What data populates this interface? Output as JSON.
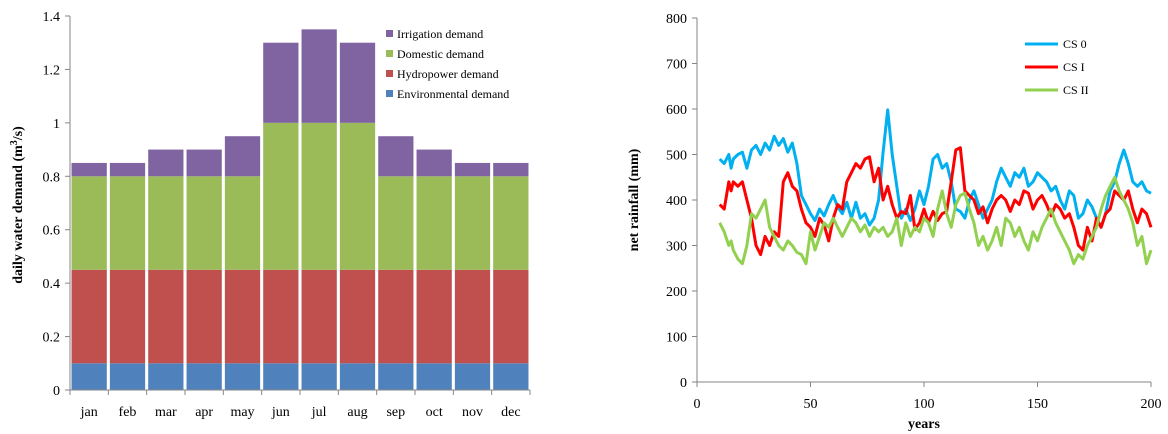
{
  "chart_data": [
    {
      "type": "bar",
      "stacked": true,
      "categories": [
        "jan",
        "feb",
        "mar",
        "apr",
        "may",
        "jun",
        "jul",
        "aug",
        "sep",
        "oct",
        "nov",
        "dec"
      ],
      "series": [
        {
          "name": "Environmental demand",
          "color": "#4f81bd",
          "values": [
            0.1,
            0.1,
            0.1,
            0.1,
            0.1,
            0.1,
            0.1,
            0.1,
            0.1,
            0.1,
            0.1,
            0.1
          ]
        },
        {
          "name": "Hydropower demand",
          "color": "#c0504d",
          "values": [
            0.35,
            0.35,
            0.35,
            0.35,
            0.35,
            0.35,
            0.35,
            0.35,
            0.35,
            0.35,
            0.35,
            0.35
          ]
        },
        {
          "name": "Domestic demand",
          "color": "#9bbb59",
          "values": [
            0.35,
            0.35,
            0.35,
            0.35,
            0.35,
            0.55,
            0.55,
            0.55,
            0.35,
            0.35,
            0.35,
            0.35
          ]
        },
        {
          "name": "Irrigation demand",
          "color": "#8064a2",
          "values": [
            0.05,
            0.05,
            0.1,
            0.1,
            0.15,
            0.3,
            0.35,
            0.3,
            0.15,
            0.1,
            0.05,
            0.05
          ]
        }
      ],
      "legend_order": [
        "Irrigation demand",
        "Domestic demand",
        "Hydropower demand",
        "Environmental demand"
      ],
      "ylabel_main": "daily water demand (m",
      "ylabel_sup": "3",
      "ylabel_tail": "/s)",
      "xlabel": "",
      "ylim": [
        0,
        1.4
      ],
      "yticks": [
        "0",
        "0.2",
        "0.4",
        "0.6",
        "0.8",
        "1",
        "1.2",
        "1.4"
      ],
      "legend_position": "top-right"
    },
    {
      "type": "line",
      "xlabel": "years",
      "ylabel": "net rainfall (mm)",
      "xlim": [
        0,
        200
      ],
      "ylim": [
        0,
        800
      ],
      "xticks": [
        "0",
        "50",
        "100",
        "150",
        "200"
      ],
      "yticks": [
        "0",
        "100",
        "200",
        "300",
        "400",
        "500",
        "600",
        "700",
        "800"
      ],
      "legend_position": "top-right",
      "series": [
        {
          "name": "CS 0",
          "color": "#00b0f0",
          "x": [
            10,
            12,
            14,
            15,
            16,
            18,
            20,
            22,
            24,
            26,
            28,
            30,
            32,
            34,
            36,
            38,
            40,
            42,
            44,
            46,
            48,
            50,
            52,
            54,
            56,
            58,
            60,
            62,
            64,
            66,
            68,
            70,
            72,
            74,
            76,
            78,
            80,
            82,
            84,
            86,
            88,
            90,
            92,
            94,
            96,
            98,
            100,
            102,
            104,
            106,
            108,
            110,
            112,
            114,
            116,
            118,
            120,
            122,
            124,
            126,
            128,
            130,
            132,
            134,
            136,
            138,
            140,
            142,
            144,
            146,
            148,
            150,
            152,
            154,
            156,
            158,
            160,
            162,
            164,
            166,
            168,
            170,
            172,
            174,
            176,
            178,
            180,
            182,
            184,
            186,
            188,
            190,
            192,
            194,
            196,
            198,
            200
          ],
          "y": [
            490,
            480,
            500,
            470,
            490,
            500,
            505,
            470,
            510,
            520,
            500,
            525,
            510,
            540,
            520,
            535,
            505,
            525,
            480,
            410,
            390,
            370,
            355,
            380,
            365,
            390,
            410,
            385,
            370,
            395,
            360,
            395,
            360,
            370,
            345,
            360,
            400,
            505,
            598,
            500,
            430,
            360,
            380,
            355,
            380,
            420,
            390,
            430,
            490,
            500,
            470,
            480,
            440,
            380,
            375,
            360,
            400,
            420,
            390,
            360,
            380,
            400,
            440,
            470,
            450,
            430,
            460,
            450,
            470,
            430,
            440,
            460,
            450,
            440,
            420,
            430,
            400,
            380,
            420,
            410,
            360,
            370,
            400,
            385,
            360,
            340,
            370,
            420,
            440,
            480,
            510,
            480,
            440,
            430,
            440,
            420,
            415
          ]
        },
        {
          "name": "CS I",
          "color": "#ff0000",
          "x": [
            10,
            12,
            14,
            15,
            16,
            18,
            20,
            22,
            24,
            26,
            28,
            30,
            32,
            34,
            36,
            38,
            40,
            42,
            44,
            46,
            48,
            50,
            52,
            54,
            56,
            58,
            60,
            62,
            64,
            66,
            68,
            70,
            72,
            74,
            76,
            78,
            80,
            82,
            84,
            86,
            88,
            90,
            92,
            94,
            96,
            98,
            100,
            102,
            104,
            106,
            108,
            110,
            112,
            114,
            116,
            118,
            120,
            122,
            124,
            126,
            128,
            130,
            132,
            134,
            136,
            138,
            140,
            142,
            144,
            146,
            148,
            150,
            152,
            154,
            156,
            158,
            160,
            162,
            164,
            166,
            168,
            170,
            172,
            174,
            176,
            178,
            180,
            182,
            184,
            186,
            188,
            190,
            192,
            194,
            196,
            198,
            200
          ],
          "y": [
            390,
            380,
            440,
            420,
            440,
            430,
            440,
            400,
            360,
            300,
            280,
            320,
            300,
            330,
            320,
            440,
            460,
            430,
            420,
            380,
            350,
            340,
            320,
            360,
            345,
            310,
            360,
            390,
            380,
            440,
            460,
            480,
            470,
            490,
            495,
            440,
            470,
            400,
            430,
            390,
            360,
            375,
            370,
            410,
            335,
            350,
            380,
            350,
            375,
            355,
            370,
            375,
            440,
            510,
            515,
            420,
            410,
            400,
            370,
            385,
            350,
            380,
            400,
            410,
            400,
            375,
            400,
            390,
            420,
            415,
            380,
            400,
            410,
            390,
            365,
            390,
            380,
            360,
            370,
            340,
            300,
            290,
            340,
            310,
            360,
            340,
            370,
            380,
            420,
            410,
            400,
            420,
            380,
            350,
            380,
            370,
            340
          ]
        },
        {
          "name": "CS II",
          "color": "#92d050",
          "x": [
            10,
            12,
            14,
            15,
            16,
            18,
            20,
            22,
            24,
            26,
            28,
            30,
            32,
            34,
            36,
            38,
            40,
            42,
            44,
            46,
            48,
            50,
            52,
            54,
            56,
            58,
            60,
            62,
            64,
            66,
            68,
            70,
            72,
            74,
            76,
            78,
            80,
            82,
            84,
            86,
            88,
            90,
            92,
            94,
            96,
            98,
            100,
            102,
            104,
            106,
            108,
            110,
            112,
            114,
            116,
            118,
            120,
            122,
            124,
            126,
            128,
            130,
            132,
            134,
            136,
            138,
            140,
            142,
            144,
            146,
            148,
            150,
            152,
            154,
            156,
            158,
            160,
            162,
            164,
            166,
            168,
            170,
            172,
            174,
            176,
            178,
            180,
            182,
            184,
            186,
            188,
            190,
            192,
            194,
            196,
            198,
            200
          ],
          "y": [
            350,
            330,
            300,
            310,
            290,
            270,
            260,
            300,
            370,
            360,
            380,
            400,
            340,
            320,
            300,
            290,
            310,
            300,
            285,
            280,
            260,
            330,
            290,
            320,
            350,
            340,
            360,
            340,
            320,
            340,
            360,
            350,
            330,
            345,
            320,
            340,
            330,
            340,
            320,
            330,
            360,
            300,
            350,
            320,
            340,
            330,
            360,
            350,
            320,
            380,
            420,
            370,
            340,
            390,
            410,
            415,
            380,
            350,
            300,
            320,
            290,
            310,
            340,
            300,
            360,
            350,
            320,
            340,
            310,
            290,
            330,
            310,
            340,
            360,
            380,
            350,
            330,
            310,
            290,
            260,
            280,
            270,
            300,
            320,
            340,
            380,
            410,
            430,
            450,
            420,
            400,
            380,
            350,
            300,
            320,
            260,
            290
          ]
        }
      ]
    }
  ]
}
